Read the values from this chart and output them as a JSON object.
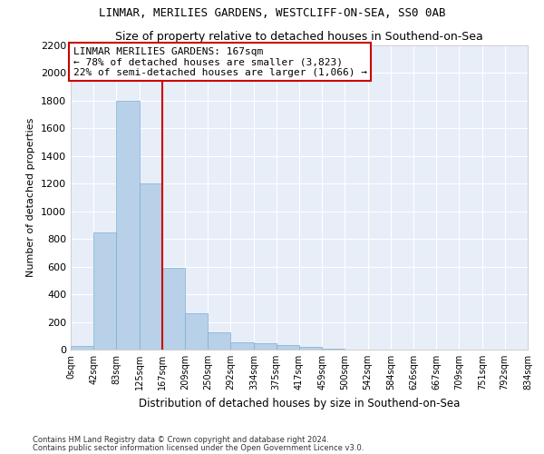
{
  "title1": "LINMAR, MERILIES GARDENS, WESTCLIFF-ON-SEA, SS0 0AB",
  "title2": "Size of property relative to detached houses in Southend-on-Sea",
  "xlabel": "Distribution of detached houses by size in Southend-on-Sea",
  "ylabel": "Number of detached properties",
  "bar_values": [
    25,
    850,
    1800,
    1200,
    590,
    260,
    125,
    50,
    45,
    35,
    20,
    5,
    2,
    1,
    0,
    0,
    0,
    0,
    0,
    0
  ],
  "bin_edges": [
    0,
    42,
    83,
    125,
    167,
    209,
    250,
    292,
    334,
    375,
    417,
    459,
    500,
    542,
    584,
    626,
    667,
    709,
    751,
    792,
    834
  ],
  "tick_labels": [
    "0sqm",
    "42sqm",
    "83sqm",
    "125sqm",
    "167sqm",
    "209sqm",
    "250sqm",
    "292sqm",
    "334sqm",
    "375sqm",
    "417sqm",
    "459sqm",
    "500sqm",
    "542sqm",
    "584sqm",
    "626sqm",
    "667sqm",
    "709sqm",
    "751sqm",
    "792sqm",
    "834sqm"
  ],
  "property_size": 167,
  "property_size_label": "167sqm",
  "property_name": "LINMAR MERILIES GARDENS",
  "pct_smaller": 78,
  "n_smaller": 3823,
  "pct_larger_semi": 22,
  "n_larger_semi": 1066,
  "bar_color": "#b8d0e8",
  "bar_edge_color": "#7aafd4",
  "vline_color": "#cc0000",
  "annotation_box_edge": "#cc0000",
  "ylim": [
    0,
    2200
  ],
  "yticks": [
    0,
    200,
    400,
    600,
    800,
    1000,
    1200,
    1400,
    1600,
    1800,
    2000,
    2200
  ],
  "bg_color": "#e8eef8",
  "grid_color": "#ffffff",
  "footer1": "Contains HM Land Registry data © Crown copyright and database right 2024.",
  "footer2": "Contains public sector information licensed under the Open Government Licence v3.0."
}
